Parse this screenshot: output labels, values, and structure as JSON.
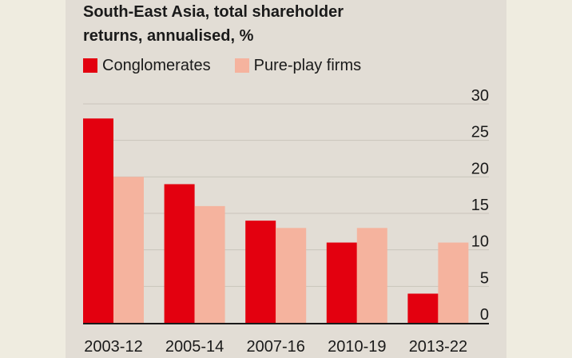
{
  "chart_data": {
    "type": "bar",
    "title": "South-East Asia, total shareholder",
    "subtitle": "returns, annualised, %",
    "categories": [
      "2003-12",
      "2005-14",
      "2007-16",
      "2010-19",
      "2013-22"
    ],
    "series": [
      {
        "name": "Conglomerates",
        "color": "#e3000f",
        "values": [
          28,
          19,
          14,
          11,
          4
        ]
      },
      {
        "name": "Pure-play firms",
        "color": "#f5b39e",
        "values": [
          20,
          16,
          13,
          13,
          11
        ]
      }
    ],
    "yticks": [
      "30",
      "25",
      "20",
      "15",
      "10",
      "5",
      "0"
    ],
    "ylim": [
      0,
      30
    ],
    "grid": true,
    "legend_position": "top-left"
  }
}
